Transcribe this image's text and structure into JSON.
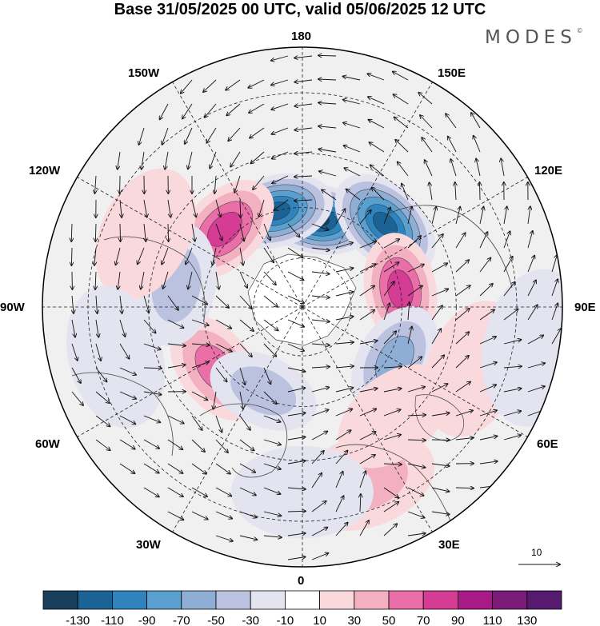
{
  "title": "Base 31/05/2025 00 UTC, valid 05/06/2025 12 UTC",
  "brand": "MODES",
  "brand_mark": "©",
  "longitude_labels": {
    "lon_180": "180",
    "lon_150e": "150E",
    "lon_120e": "120E",
    "lon_90e": "90E",
    "lon_60e": "60E",
    "lon_30e": "30E",
    "lon_0": "0",
    "lon_30w": "30W",
    "lon_60w": "60W",
    "lon_90w": "90W",
    "lon_120w": "120W",
    "lon_150w": "150W"
  },
  "reference_vector": "10",
  "colorbar": {
    "levels": [
      -130,
      -110,
      -90,
      -70,
      -50,
      -30,
      -10,
      10,
      30,
      50,
      70,
      90,
      110,
      130
    ],
    "colors": [
      "#173f5c",
      "#1b6394",
      "#2f84bd",
      "#5aa0cf",
      "#8eaed6",
      "#bbc2e0",
      "#e4e4f0",
      "#ffffff",
      "#f9d9dc",
      "#f3b0c1",
      "#ea6fa8",
      "#d53c93",
      "#a81a86",
      "#7b1c78",
      "#561a6e"
    ]
  },
  "anomalies": [
    {
      "lon": 170,
      "lat": 63,
      "value": -140
    },
    {
      "lon": -165,
      "lat": 60,
      "value": -130
    },
    {
      "lon": 135,
      "lat": 55,
      "value": -120
    },
    {
      "lon": -135,
      "lat": 57,
      "value": 80
    },
    {
      "lon": 100,
      "lat": 60,
      "value": 80
    },
    {
      "lon": -55,
      "lat": 58,
      "value": 70
    },
    {
      "lon": -25,
      "lat": 62,
      "value": -50
    },
    {
      "lon": 60,
      "lat": 58,
      "value": -60
    },
    {
      "lon": -100,
      "lat": 52,
      "value": -40
    },
    {
      "lon": 20,
      "lat": 37,
      "value": 50
    },
    {
      "lon": 40,
      "lat": 48,
      "value": 30
    },
    {
      "lon": -115,
      "lat": 40,
      "value": 20
    },
    {
      "lon": 70,
      "lat": 38,
      "value": 20
    },
    {
      "lon": 0,
      "lat": 37,
      "value": -30
    },
    {
      "lon": 80,
      "lat": 25,
      "value": -20
    },
    {
      "lon": -75,
      "lat": 35,
      "value": -20
    }
  ]
}
